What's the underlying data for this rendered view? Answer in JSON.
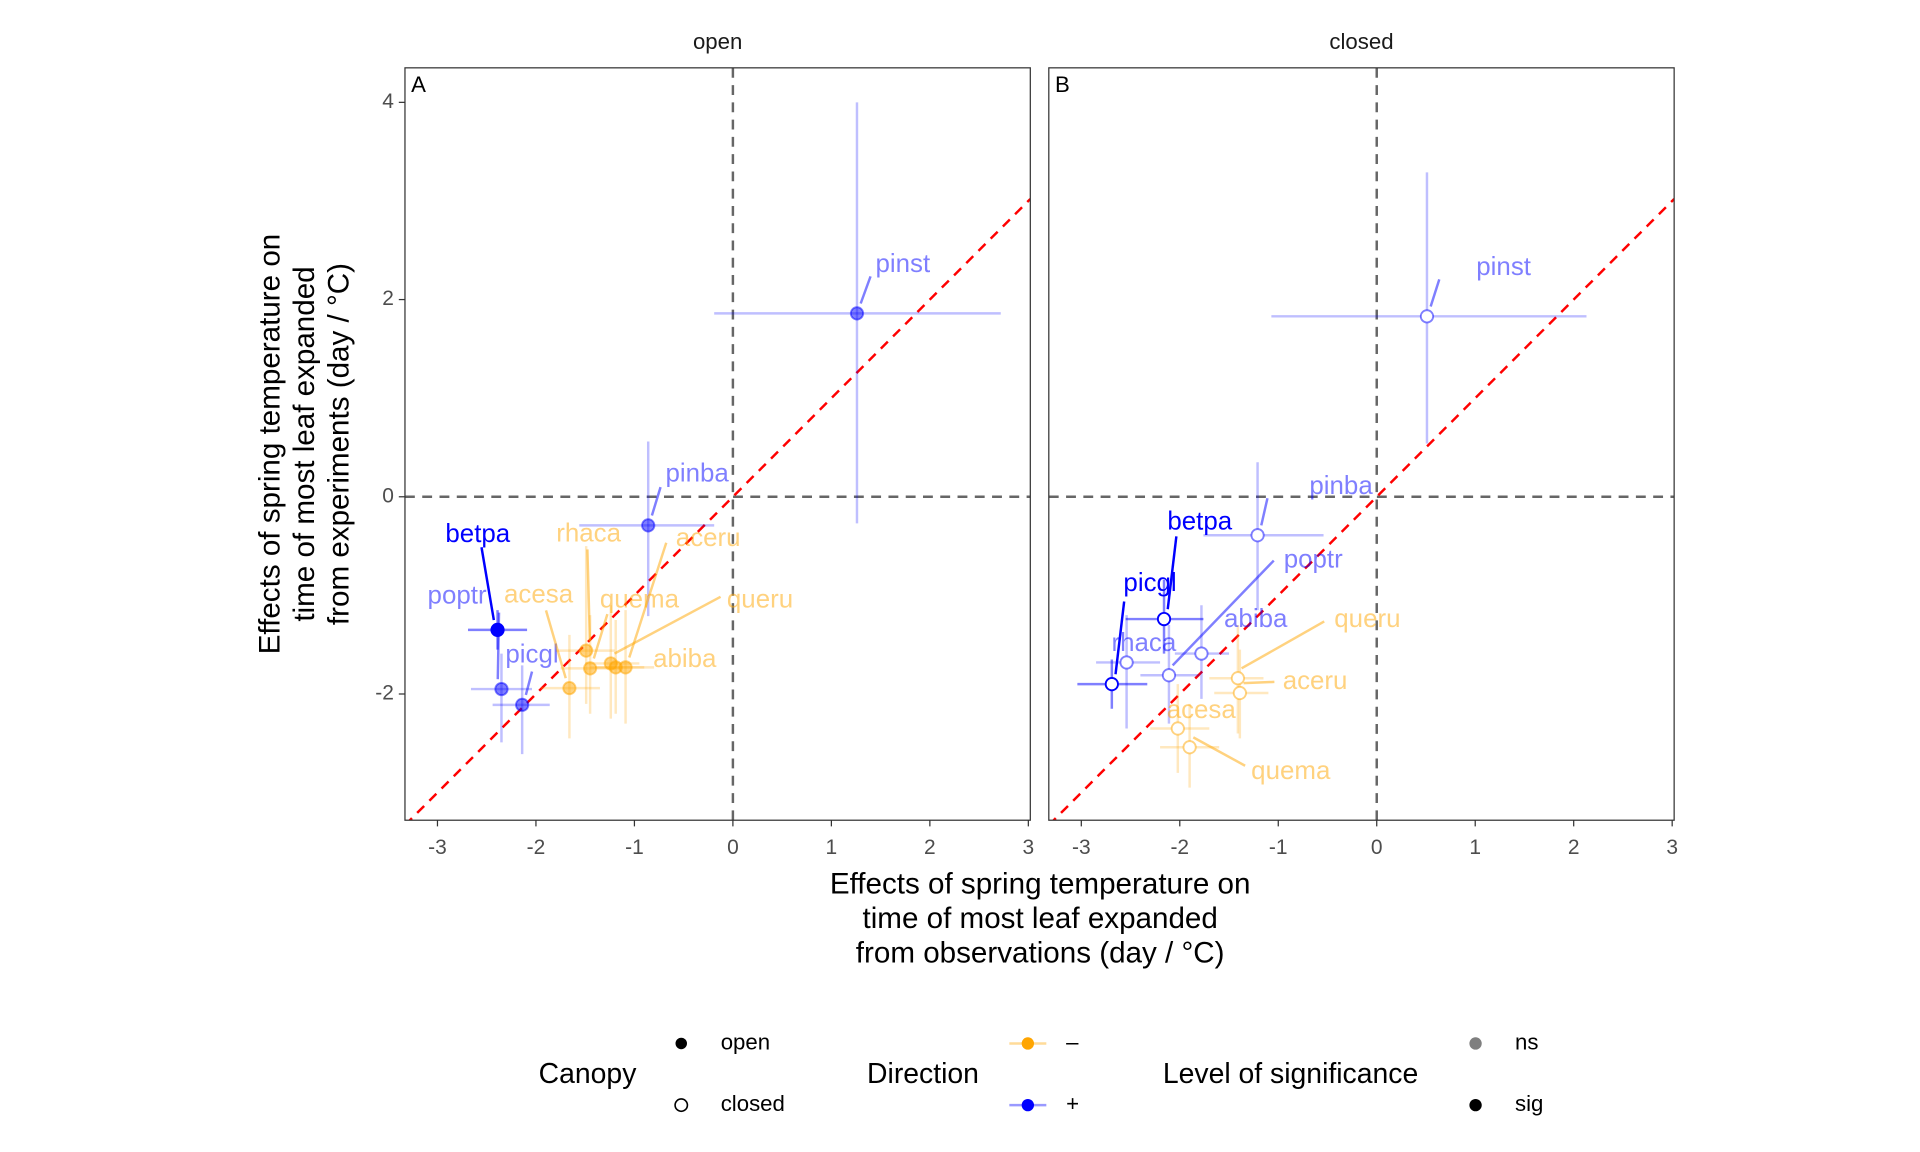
{
  "chart_data": [
    {
      "type": "scatter",
      "title": "open",
      "tag": "A",
      "xlim": [
        -3.33,
        3.02
      ],
      "ylim": [
        -3.28,
        4.35
      ],
      "xticks": [
        -3,
        -2,
        -1,
        0,
        1,
        2,
        3
      ],
      "yticks": [
        -2,
        0,
        2,
        4
      ],
      "hline": 0,
      "vline": 0,
      "abline": {
        "slope": 1,
        "intercept": 0,
        "color": "#ff0000"
      },
      "points": {
        "labels": [
          "pinst",
          "pinba",
          "betpa",
          "poptr",
          "picgl",
          "acesa",
          "rhaca",
          "quema",
          "queru",
          "aceru",
          "abiba"
        ],
        "x": [
          1.26,
          -0.86,
          -2.39,
          -2.35,
          -2.14,
          -1.66,
          -1.49,
          -1.45,
          -1.24,
          -1.09,
          -1.19
        ],
        "y": [
          1.86,
          -0.29,
          -1.35,
          -1.95,
          -2.11,
          -1.94,
          -1.56,
          -1.74,
          -1.69,
          -1.73,
          -1.73
        ],
        "x_lo": [
          -0.19,
          -1.56,
          -2.69,
          -2.66,
          -2.44,
          -1.95,
          -1.8,
          -1.75,
          -1.5,
          -1.4,
          -1.45
        ],
        "x_hi": [
          2.72,
          -0.19,
          -2.09,
          -2.04,
          -1.86,
          -1.35,
          -1.2,
          -1.15,
          -0.95,
          -0.8,
          -0.9
        ],
        "y_lo": [
          -0.27,
          -1.21,
          -1.55,
          -2.49,
          -2.61,
          -2.45,
          -2.1,
          -2.2,
          -2.25,
          -2.3,
          -2.2
        ],
        "y_hi": [
          4.0,
          0.56,
          -1.15,
          -1.59,
          -1.71,
          -1.4,
          -0.5,
          -1.2,
          -1.1,
          -1.15,
          -1.25
        ],
        "direction": [
          "+",
          "+",
          "+",
          "+",
          "+",
          "–",
          "–",
          "–",
          "–",
          "–",
          "–"
        ],
        "significance": [
          "ns",
          "ns",
          "sig",
          "ns",
          "ns",
          "ns",
          "ns",
          "ns",
          "ns",
          "ns",
          "ns"
        ]
      }
    },
    {
      "type": "scatter",
      "title": "closed",
      "tag": "B",
      "xlim": [
        -3.33,
        3.02
      ],
      "ylim": [
        -3.28,
        4.35
      ],
      "xticks": [
        -3,
        -2,
        -1,
        0,
        1,
        2,
        3
      ],
      "hline": 0,
      "vline": 0,
      "abline": {
        "slope": 1,
        "intercept": 0,
        "color": "#ff0000"
      },
      "points": {
        "labels": [
          "pinst",
          "pinba",
          "betpa",
          "picgl",
          "rhaca",
          "poptr",
          "abiba",
          "queru",
          "aceru",
          "acesa",
          "quema"
        ],
        "x": [
          0.51,
          -1.21,
          -2.16,
          -2.69,
          -2.54,
          -2.11,
          -1.78,
          -1.41,
          -1.39,
          -2.02,
          -1.9
        ],
        "y": [
          1.83,
          -0.39,
          -1.24,
          -1.9,
          -1.68,
          -1.81,
          -1.59,
          -1.84,
          -1.99,
          -2.35,
          -2.54
        ],
        "x_lo": [
          -1.07,
          -1.76,
          -2.55,
          -3.04,
          -2.85,
          -2.4,
          -2.05,
          -1.7,
          -1.65,
          -2.3,
          -2.2
        ],
        "x_hi": [
          2.13,
          -0.54,
          -1.76,
          -2.33,
          -2.2,
          -1.8,
          -1.5,
          -1.15,
          -1.1,
          -1.7,
          -1.6
        ],
        "y_lo": [
          0.54,
          -1.15,
          -1.59,
          -2.15,
          -2.35,
          -2.3,
          -2.05,
          -2.4,
          -2.45,
          -2.8,
          -2.95
        ],
        "y_hi": [
          3.29,
          0.35,
          -0.84,
          -1.65,
          -1.2,
          -1.3,
          -1.1,
          -1.3,
          -1.55,
          -1.9,
          -2.1
        ],
        "direction": [
          "+",
          "+",
          "+",
          "+",
          "+",
          "+",
          "+",
          "–",
          "–",
          "–",
          "–"
        ],
        "significance": [
          "ns",
          "ns",
          "sig",
          "sig",
          "ns",
          "ns",
          "ns",
          "ns",
          "ns",
          "ns",
          "ns"
        ]
      }
    }
  ],
  "x_label": [
    "Effects of spring temperature on",
    "time of most leaf expanded",
    "from observations (day / °C)"
  ],
  "y_label": [
    "Effects of spring temperature on",
    "time of most leaf expanded",
    "from experiments (day / °C)"
  ],
  "legend": {
    "canopy": {
      "title": "Canopy",
      "entries": [
        "open",
        "closed"
      ]
    },
    "direction": {
      "title": "Direction",
      "entries": [
        "–",
        "+"
      ],
      "colors": [
        "#ffa500",
        "#0000ff"
      ]
    },
    "significance": {
      "title": "Level of significance",
      "entries": [
        "ns",
        "sig"
      ],
      "alpha": [
        0.5,
        1
      ]
    }
  }
}
